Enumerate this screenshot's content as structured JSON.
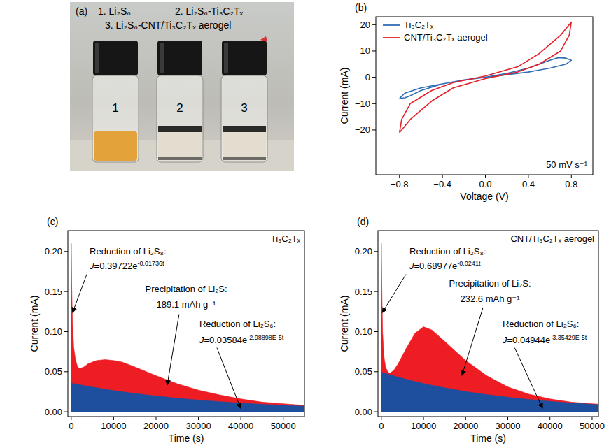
{
  "photo": {
    "panel_label": "(a)",
    "caption": [
      "1. Li₂S₆",
      "2. Li₂S₆-Ti₃C₂Tₓ",
      "3. Li₂S₆-CNT/Ti₃C₂Tₓ aerogel"
    ],
    "vials": [
      "1",
      "2",
      "3"
    ]
  },
  "chart_data": [
    {
      "type": "line",
      "panel_label": "(b)",
      "x_label": "Voltage (V)",
      "y_label": "Current (mA)",
      "xlim": [
        -1.02,
        1.0
      ],
      "xticks": [
        {
          "value": -0.8,
          "label": "−0.8"
        },
        {
          "value": -0.4,
          "label": "−0.4"
        },
        {
          "value": 0,
          "label": "0.0"
        },
        0.4,
        0.8
      ],
      "ylim": [
        -37,
        23
      ],
      "yticks": [
        {
          "value": -20,
          "label": "−20"
        },
        {
          "value": -10,
          "label": "−10"
        },
        0,
        10,
        20
      ],
      "grid": false,
      "legend": "top-left",
      "annotation": "50 mV s⁻¹",
      "series": [
        {
          "name": "Ti₃C₂Tₓ",
          "color": "#2f6db5",
          "x": [
            -0.8,
            -0.75,
            -0.6,
            -0.4,
            -0.2,
            0,
            0.2,
            0.4,
            0.6,
            0.68,
            0.75,
            0.8,
            0.75,
            0.6,
            0.4,
            0.2,
            0,
            -0.2,
            -0.4,
            -0.6,
            -0.7,
            -0.75,
            -0.8
          ],
          "values": [
            -8,
            -6,
            -4,
            -2.5,
            -1,
            0,
            1.5,
            3.5,
            6.5,
            7.5,
            7.3,
            6.5,
            5,
            3.5,
            2,
            1,
            0,
            -1,
            -2.5,
            -5,
            -7,
            -7.8,
            -8
          ]
        },
        {
          "name": "CNT/Ti₃C₂Tₓ aerogel",
          "color": "#e4212b",
          "x": [
            -0.8,
            -0.78,
            -0.7,
            -0.5,
            -0.3,
            0,
            0.3,
            0.5,
            0.7,
            0.8,
            0.78,
            0.7,
            0.5,
            0.3,
            0,
            -0.3,
            -0.5,
            -0.7,
            -0.8
          ],
          "values": [
            -21,
            -16,
            -10,
            -5,
            -2,
            0.5,
            4,
            9,
            16,
            21,
            16,
            10,
            5,
            2,
            -0.5,
            -4,
            -9,
            -16,
            -21
          ]
        }
      ]
    },
    {
      "type": "area",
      "panel_label": "(c)",
      "title": "Ti₃C₂Tₓ",
      "x_label": "Time (s)",
      "y_label": "Current (mA)",
      "xlim": [
        -800,
        55000
      ],
      "xticks": [
        0,
        10000,
        20000,
        30000,
        40000,
        50000
      ],
      "ylim": [
        -0.006,
        0.226
      ],
      "yticks": [
        {
          "value": 0,
          "label": "0.00"
        },
        {
          "value": 0.05,
          "label": "0.05"
        },
        {
          "value": 0.1,
          "label": "0.10"
        },
        {
          "value": 0.15,
          "label": "0.15"
        },
        {
          "value": 0.2,
          "label": "0.20"
        }
      ],
      "grid": false,
      "x": [
        0,
        100,
        300,
        600,
        1000,
        1500,
        2000,
        3000,
        4000,
        6000,
        8000,
        10000,
        12000,
        15000,
        20000,
        25000,
        30000,
        35000,
        40000,
        45000,
        50000,
        55000
      ],
      "series": [
        {
          "color": "#ee1d23",
          "values": [
            0.21,
            0.16,
            0.11,
            0.08,
            0.065,
            0.056,
            0.054,
            0.056,
            0.06,
            0.064,
            0.065,
            0.064,
            0.062,
            0.056,
            0.045,
            0.035,
            0.027,
            0.021,
            0.016,
            0.012,
            0.01,
            0.008
          ]
        },
        {
          "color": "#1e4f9e",
          "values": [
            0.0358,
            0.0357,
            0.0355,
            0.0352,
            0.0348,
            0.0342,
            0.0337,
            0.0327,
            0.0317,
            0.0299,
            0.0281,
            0.0265,
            0.025,
            0.0228,
            0.0197,
            0.017,
            0.0146,
            0.0126,
            0.0108,
            0.0093,
            0.008,
            0.0069
          ]
        }
      ],
      "annotations": [
        {
          "lines": [
            "Reduction of Li₂S₈:"
          ],
          "equation": {
            "variable": "J",
            "base": "=0.39722e",
            "exponent": "-0.01736t"
          }
        },
        {
          "lines": [
            "Precipitation of Li₂S:",
            "189.1 mAh g⁻¹"
          ]
        },
        {
          "lines": [
            "Reduction of Li₂S₆:"
          ],
          "equation": {
            "variable": "J",
            "base": "=0.03584e",
            "exponent": "-2.98898E-5t"
          }
        }
      ]
    },
    {
      "type": "area",
      "panel_label": "(d)",
      "title": "CNT/Ti₃C₂Tₓ aerogel",
      "x_label": "Time (s)",
      "y_label": "Current (mA)",
      "xlim": [
        -800,
        51500
      ],
      "xticks": [
        0,
        10000,
        20000,
        30000,
        40000,
        50000
      ],
      "ylim": [
        -0.006,
        0.226
      ],
      "yticks": [
        {
          "value": 0,
          "label": "0.00"
        },
        {
          "value": 0.05,
          "label": "0.05"
        },
        {
          "value": 0.1,
          "label": "0.10"
        },
        {
          "value": 0.15,
          "label": "0.15"
        },
        {
          "value": 0.2,
          "label": "0.20"
        }
      ],
      "grid": false,
      "x": [
        0,
        100,
        300,
        600,
        1000,
        1500,
        2000,
        3000,
        4000,
        6000,
        8000,
        10000,
        12000,
        15000,
        20000,
        25000,
        30000,
        35000,
        40000,
        45000,
        50000,
        51500
      ],
      "series": [
        {
          "color": "#ee1d23",
          "values": [
            0.21,
            0.16,
            0.1,
            0.07,
            0.056,
            0.05,
            0.048,
            0.052,
            0.06,
            0.08,
            0.098,
            0.106,
            0.102,
            0.088,
            0.064,
            0.045,
            0.031,
            0.022,
            0.016,
            0.012,
            0.01,
            0.0095
          ]
        },
        {
          "color": "#1e4f9e",
          "values": [
            0.0494,
            0.0492,
            0.0489,
            0.0484,
            0.0478,
            0.047,
            0.0462,
            0.0447,
            0.0432,
            0.0404,
            0.0378,
            0.0353,
            0.033,
            0.0299,
            0.0252,
            0.0214,
            0.0181,
            0.0153,
            0.0129,
            0.0109,
            0.0093,
            0.0088
          ]
        }
      ],
      "annotations": [
        {
          "lines": [
            "Reduction of Li₂S₈:"
          ],
          "equation": {
            "variable": "J",
            "base": "=0.68977e",
            "exponent": "-0.0241t"
          }
        },
        {
          "lines": [
            "Precipitation of Li₂S:",
            "232.6 mAh g⁻¹"
          ]
        },
        {
          "lines": [
            "Reduction of Li₂S₆:"
          ],
          "equation": {
            "variable": "J",
            "base": "=0.04944e",
            "exponent": "-3.35429E-5t"
          }
        }
      ]
    }
  ]
}
